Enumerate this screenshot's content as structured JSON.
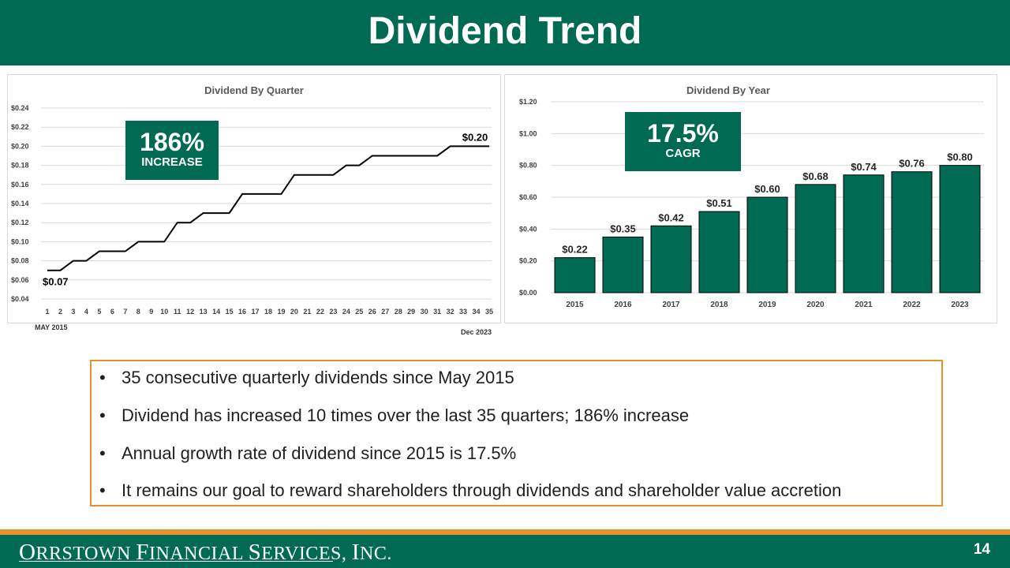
{
  "slide": {
    "title": "Dividend Trend",
    "page_number": "14",
    "brand_green": "#006b52",
    "accent_orange": "#e5922e"
  },
  "footer": {
    "logo_text": "Orrstown Financial Services, Inc."
  },
  "callouts": {
    "quarter_big": "186%",
    "quarter_small": "INCREASE",
    "year_big": "17.5%",
    "year_small": "CAGR"
  },
  "axis_notes": {
    "start": "MAY 2015",
    "end": "Dec 2023"
  },
  "bullets": [
    "35 consecutive quarterly dividends since May 2015",
    "Dividend has increased 10 times over the last 35 quarters; 186% increase",
    "Annual growth rate of dividend since 2015 is 17.5%",
    "It remains our goal to reward shareholders through dividends and shareholder value accretion"
  ],
  "bullet_symbol": "•",
  "chart_data": [
    {
      "type": "line",
      "title": "Dividend By Quarter",
      "x": [
        1,
        2,
        3,
        4,
        5,
        6,
        7,
        8,
        9,
        10,
        11,
        12,
        13,
        14,
        15,
        16,
        17,
        18,
        19,
        20,
        21,
        22,
        23,
        24,
        25,
        26,
        27,
        28,
        29,
        30,
        31,
        32,
        33,
        34,
        35
      ],
      "series": [
        {
          "name": "Dividend",
          "values": [
            0.07,
            0.07,
            0.08,
            0.08,
            0.09,
            0.09,
            0.09,
            0.1,
            0.1,
            0.1,
            0.12,
            0.12,
            0.13,
            0.13,
            0.13,
            0.15,
            0.15,
            0.15,
            0.15,
            0.17,
            0.17,
            0.17,
            0.17,
            0.18,
            0.18,
            0.19,
            0.19,
            0.19,
            0.19,
            0.19,
            0.19,
            0.2,
            0.2,
            0.2,
            0.2
          ]
        }
      ],
      "ylim": [
        0.04,
        0.24
      ],
      "yticks": [
        "$0.04",
        "$0.06",
        "$0.08",
        "$0.10",
        "$0.12",
        "$0.14",
        "$0.16",
        "$0.18",
        "$0.20",
        "$0.22",
        "$0.24"
      ],
      "data_labels": {
        "first": "$0.07",
        "last": "$0.20"
      },
      "grid": true,
      "color": "#000000"
    },
    {
      "type": "bar",
      "title": "Dividend By Year",
      "categories": [
        "2015",
        "2016",
        "2017",
        "2018",
        "2019",
        "2020",
        "2021",
        "2022",
        "2023"
      ],
      "values": [
        0.22,
        0.35,
        0.42,
        0.51,
        0.6,
        0.68,
        0.74,
        0.76,
        0.8
      ],
      "value_labels": [
        "$0.22",
        "$0.35",
        "$0.42",
        "$0.51",
        "$0.60",
        "$0.68",
        "$0.74",
        "$0.76",
        "$0.80"
      ],
      "ylim": [
        0,
        1.2
      ],
      "yticks": [
        "$0.00",
        "$0.20",
        "$0.40",
        "$0.60",
        "$0.80",
        "$1.00",
        "$1.20"
      ],
      "grid": true,
      "color": "#006b52"
    }
  ]
}
